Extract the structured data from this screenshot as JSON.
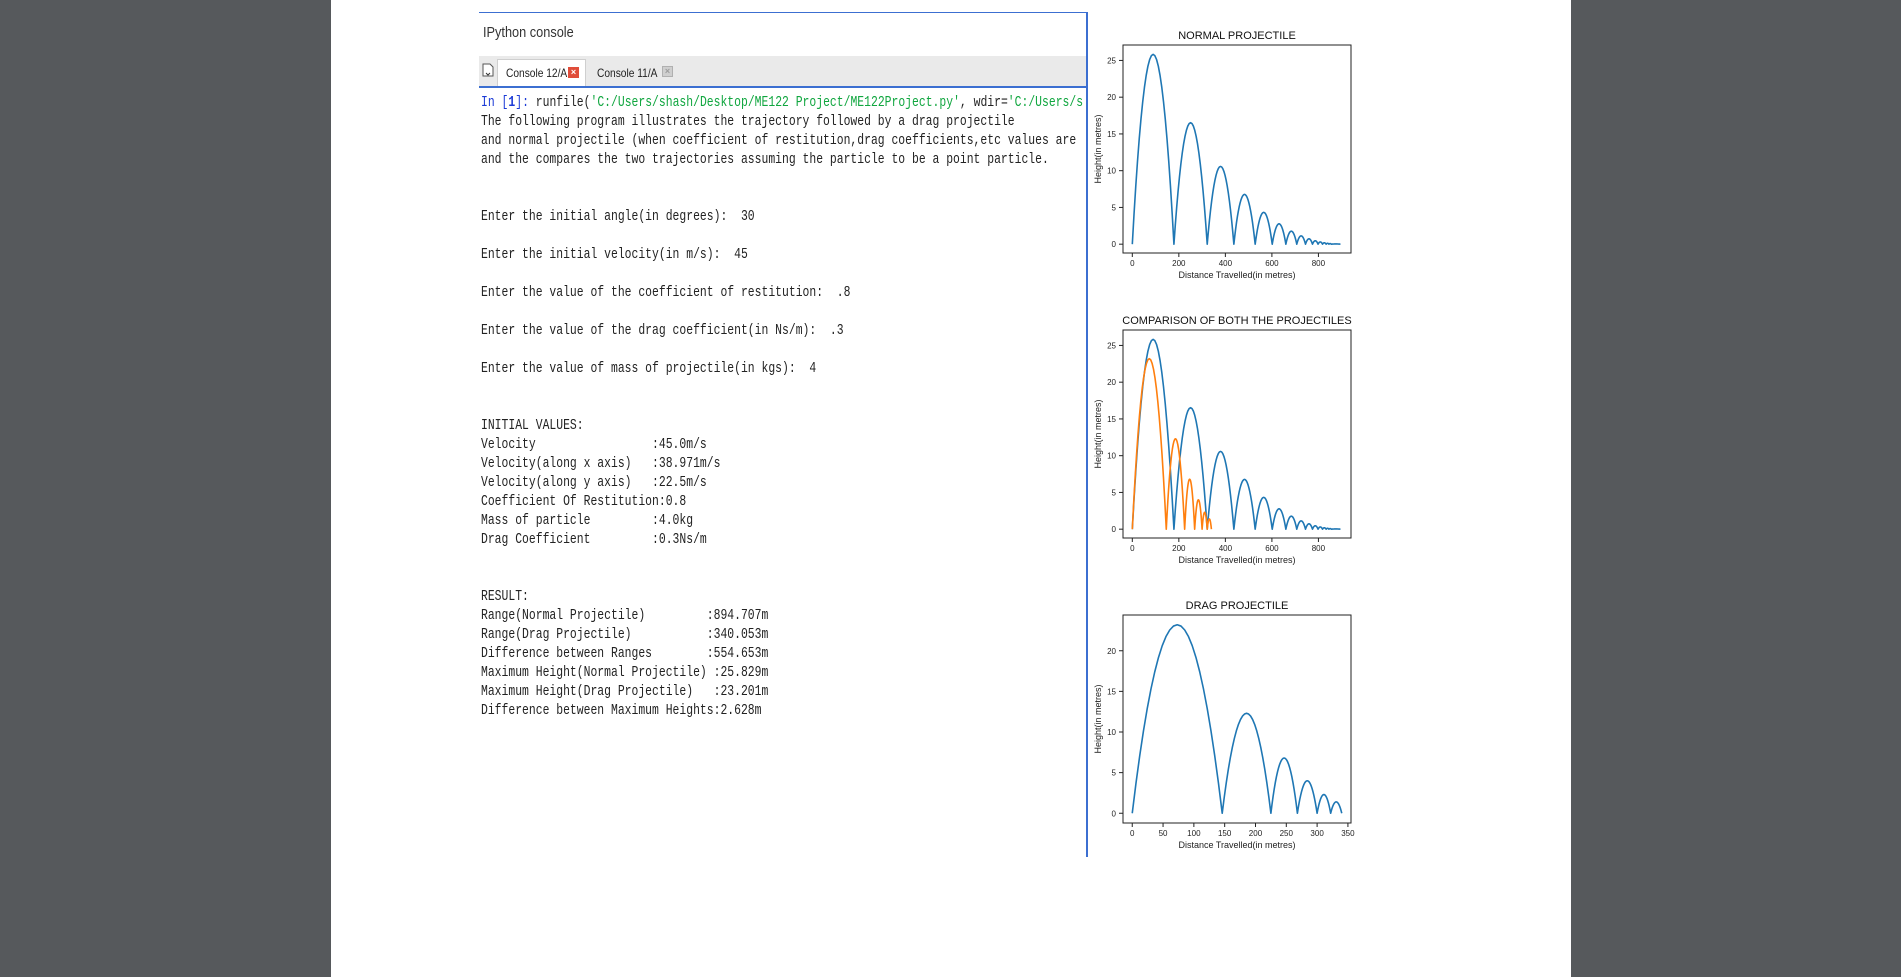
{
  "console": {
    "panel_title": "IPython console",
    "tabs": [
      {
        "label": "Console 12/A",
        "active": true
      },
      {
        "label": "Console 11/A",
        "active": false
      }
    ],
    "prompt": {
      "in_text": "In [",
      "number": "1",
      "close": "]: ",
      "call": "runfile(",
      "path": "'C:/Users/shash/Desktop/ME122 Project/ME122Project.py'",
      "sep": ", wdir=",
      "wdir": "'C:/Users/shash/Desk"
    },
    "intro_lines": [
      "The following program illustrates the trajectory followed by a drag projectile",
      "and normal projectile (when coefficient of restitution,drag coefficients,etc values are provided)",
      "and the compares the two trajectories assuming the particle to be a point particle."
    ],
    "inputs": [
      "Enter the initial angle(in degrees):  30",
      "Enter the initial velocity(in m/s):  45",
      "Enter the value of the coefficient of restitution:  .8",
      "Enter the value of the drag coefficient(in Ns/m):  .3",
      "Enter the value of mass of projectile(in kgs):  4"
    ],
    "initial_header": "INITIAL VALUES:",
    "initial_values": [
      "Velocity                 :45.0m/s",
      "Velocity(along x axis)   :38.971m/s",
      "Velocity(along y axis)   :22.5m/s",
      "Coefficient Of Restitution:0.8",
      "Mass of particle         :4.0kg",
      "Drag Coefficient         :0.3Ns/m"
    ],
    "result_header": "RESULT:",
    "results": [
      "Range(Normal Projectile)         :894.707m",
      "Range(Drag Projectile)           :340.053m",
      "Difference between Ranges        :554.653m",
      "Maximum Height(Normal Projectile) :25.829m",
      "Maximum Height(Drag Projectile)   :23.201m",
      "Difference between Maximum Heights:2.628m"
    ]
  },
  "colors": {
    "series_normal": "#1f77b4",
    "series_drag": "#ff7f0e",
    "accent_blue": "#3c6fd1",
    "string_green": "#10a63f"
  },
  "chart_data": [
    {
      "type": "line",
      "title": "NORMAL PROJECTILE",
      "xlabel": "Distance Travelled(in metres)",
      "ylabel": "Height(in metres)",
      "xlim": [
        -40,
        940
      ],
      "ylim": [
        -1.2,
        27.1
      ],
      "xticks": [
        0,
        200,
        400,
        600,
        800
      ],
      "yticks": [
        0,
        5,
        10,
        15,
        20,
        25
      ],
      "series": [
        {
          "color": "#1f77b4",
          "bounces": [
            [
              0,
              178.9,
              25.83
            ],
            [
              178.9,
              322.0,
              16.53
            ],
            [
              322.0,
              436.5,
              10.58
            ],
            [
              436.5,
              528.1,
              6.77
            ],
            [
              528.1,
              601.4,
              4.33
            ],
            [
              601.4,
              660.0,
              2.77
            ],
            [
              660.0,
              706.9,
              1.77
            ],
            [
              706.9,
              744.4,
              1.13
            ],
            [
              744.4,
              774.4,
              0.73
            ],
            [
              774.4,
              798.4,
              0.46
            ],
            [
              798.4,
              817.6,
              0.3
            ],
            [
              817.6,
              833.0,
              0.19
            ],
            [
              833.0,
              845.3,
              0.12
            ],
            [
              845.3,
              855.1,
              0.08
            ],
            [
              855.1,
              894.7,
              0.03
            ]
          ]
        }
      ]
    },
    {
      "type": "line",
      "title": "COMPARISON OF BOTH THE PROJECTILES",
      "xlabel": "Distance Travelled(in metres)",
      "ylabel": "Height(in metres)",
      "xlim": [
        -40,
        940
      ],
      "ylim": [
        -1.2,
        27.1
      ],
      "xticks": [
        0,
        200,
        400,
        600,
        800
      ],
      "yticks": [
        0,
        5,
        10,
        15,
        20,
        25
      ],
      "series": [
        {
          "color": "#1f77b4",
          "bounces": [
            [
              0,
              178.9,
              25.83
            ],
            [
              178.9,
              322.0,
              16.53
            ],
            [
              322.0,
              436.5,
              10.58
            ],
            [
              436.5,
              528.1,
              6.77
            ],
            [
              528.1,
              601.4,
              4.33
            ],
            [
              601.4,
              660.0,
              2.77
            ],
            [
              660.0,
              706.9,
              1.77
            ],
            [
              706.9,
              744.4,
              1.13
            ],
            [
              744.4,
              774.4,
              0.73
            ],
            [
              774.4,
              798.4,
              0.46
            ],
            [
              798.4,
              817.6,
              0.3
            ],
            [
              817.6,
              833.0,
              0.19
            ],
            [
              833.0,
              845.3,
              0.12
            ],
            [
              845.3,
              855.1,
              0.08
            ],
            [
              855.1,
              894.7,
              0.03
            ]
          ]
        },
        {
          "color": "#ff7f0e",
          "bounces": [
            [
              0,
              146,
              23.2
            ],
            [
              146,
              225,
              12.3
            ],
            [
              225,
              268,
              6.8
            ],
            [
              268,
              300,
              4.0
            ],
            [
              300,
              322,
              2.3
            ],
            [
              322,
              340,
              1.4
            ]
          ]
        }
      ]
    },
    {
      "type": "line",
      "title": "DRAG PROJECTILE",
      "xlabel": "Distance Travelled(in metres)",
      "ylabel": "Height(in metres)",
      "xlim": [
        -15,
        355
      ],
      "ylim": [
        -1.2,
        24.4
      ],
      "xticks": [
        0,
        50,
        100,
        150,
        200,
        250,
        300,
        350
      ],
      "yticks": [
        0,
        5,
        10,
        15,
        20
      ],
      "series": [
        {
          "color": "#1f77b4",
          "bounces": [
            [
              0,
              146,
              23.2
            ],
            [
              146,
              225,
              12.3
            ],
            [
              225,
              268,
              6.8
            ],
            [
              268,
              300,
              4.0
            ],
            [
              300,
              322,
              2.3
            ],
            [
              322,
              340,
              1.4
            ]
          ]
        }
      ]
    }
  ]
}
